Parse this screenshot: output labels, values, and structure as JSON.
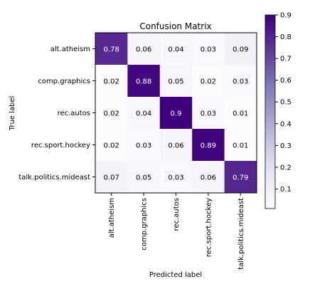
{
  "chart_data": {
    "type": "heatmap",
    "title": "Confusion Matrix",
    "xlabel": "Predicted label",
    "ylabel": "True label",
    "x_categories": [
      "alt.atheism",
      "comp.graphics",
      "rec.autos",
      "rec.sport.hockey",
      "talk.politics.mideast"
    ],
    "y_categories": [
      "alt.atheism",
      "comp.graphics",
      "rec.autos",
      "rec.sport.hockey",
      "talk.politics.mideast"
    ],
    "values": [
      [
        0.78,
        0.06,
        0.04,
        0.03,
        0.09
      ],
      [
        0.02,
        0.88,
        0.05,
        0.02,
        0.03
      ],
      [
        0.02,
        0.04,
        0.9,
        0.03,
        0.01
      ],
      [
        0.02,
        0.03,
        0.06,
        0.89,
        0.01
      ],
      [
        0.07,
        0.05,
        0.03,
        0.06,
        0.79
      ]
    ],
    "cell_labels": [
      [
        "0.78",
        "0.06",
        "0.04",
        "0.03",
        "0.09"
      ],
      [
        "0.02",
        "0.88",
        "0.05",
        "0.02",
        "0.03"
      ],
      [
        "0.02",
        "0.04",
        "0.9",
        "0.03",
        "0.01"
      ],
      [
        "0.02",
        "0.03",
        "0.06",
        "0.89",
        "0.01"
      ],
      [
        "0.07",
        "0.05",
        "0.03",
        "0.06",
        "0.79"
      ]
    ],
    "colormap": "Purples",
    "color_low": "#fcfbfd",
    "color_high": "#3f007d",
    "colorbar": {
      "range": [
        0.01,
        0.9
      ],
      "ticks": [
        0.1,
        0.2,
        0.3,
        0.4,
        0.5,
        0.6,
        0.7,
        0.8,
        0.9
      ],
      "tick_labels": [
        "0.1",
        "0.2",
        "0.3",
        "0.4",
        "0.5",
        "0.6",
        "0.7",
        "0.8",
        "0.9"
      ],
      "placement": "right"
    }
  }
}
